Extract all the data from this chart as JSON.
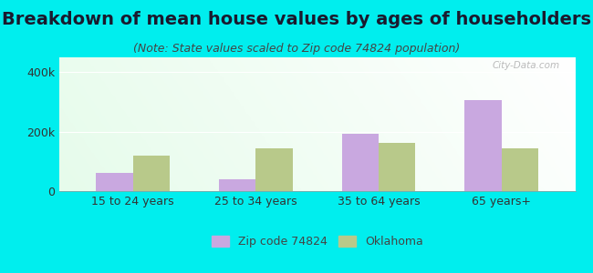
{
  "title": "Breakdown of mean house values by ages of householders",
  "subtitle": "(Note: State values scaled to Zip code 74824 population)",
  "categories": [
    "15 to 24 years",
    "25 to 34 years",
    "35 to 64 years",
    "65 years+"
  ],
  "zip_values": [
    62000,
    40000,
    192000,
    305000
  ],
  "state_values": [
    120000,
    145000,
    162000,
    145000
  ],
  "zip_color": "#c9a8e0",
  "state_color": "#b8c98a",
  "background_color": "#00eeee",
  "ylim": [
    0,
    450000
  ],
  "ytick_labels": [
    "0",
    "200k",
    "400k"
  ],
  "ytick_vals": [
    0,
    200000,
    400000
  ],
  "legend_zip_label": "Zip code 74824",
  "legend_state_label": "Oklahoma",
  "title_fontsize": 14,
  "subtitle_fontsize": 9,
  "bar_width": 0.3
}
